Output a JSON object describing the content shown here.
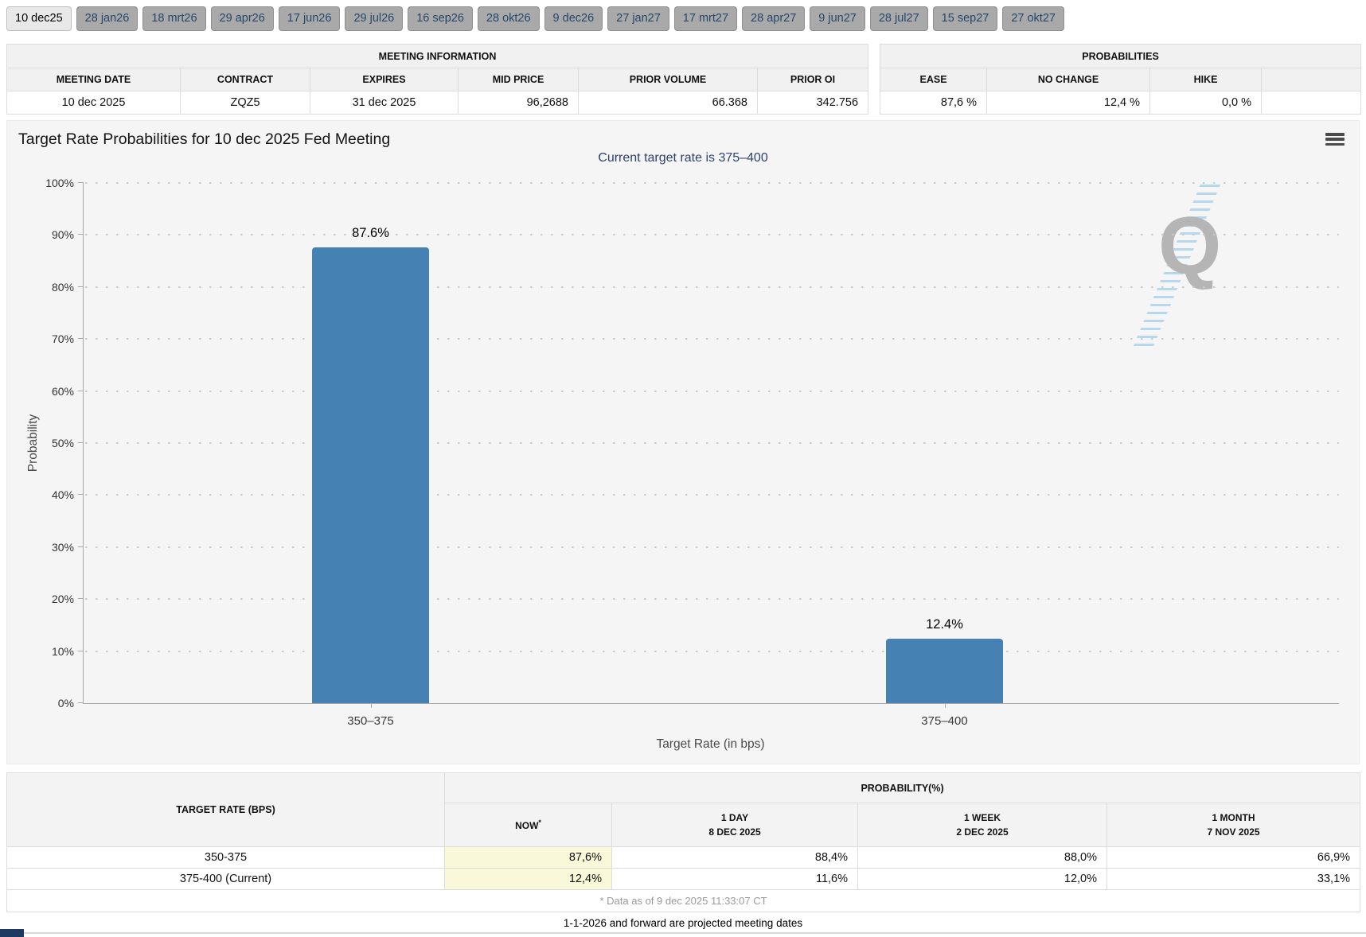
{
  "tabs": {
    "items": [
      {
        "label": "10 dec25",
        "active": true
      },
      {
        "label": "28 jan26",
        "active": false
      },
      {
        "label": "18 mrt26",
        "active": false
      },
      {
        "label": "29 apr26",
        "active": false
      },
      {
        "label": "17 jun26",
        "active": false
      },
      {
        "label": "29 jul26",
        "active": false
      },
      {
        "label": "16 sep26",
        "active": false
      },
      {
        "label": "28 okt26",
        "active": false
      },
      {
        "label": "9 dec26",
        "active": false
      },
      {
        "label": "27 jan27",
        "active": false
      },
      {
        "label": "17 mrt27",
        "active": false
      },
      {
        "label": "28 apr27",
        "active": false
      },
      {
        "label": "9 jun27",
        "active": false
      },
      {
        "label": "28 jul27",
        "active": false
      },
      {
        "label": "15 sep27",
        "active": false
      },
      {
        "label": "27 okt27",
        "active": false
      }
    ]
  },
  "meeting_info": {
    "title": "MEETING INFORMATION",
    "columns": [
      "MEETING DATE",
      "CONTRACT",
      "EXPIRES",
      "MID PRICE",
      "PRIOR VOLUME",
      "PRIOR OI"
    ],
    "values": [
      "10 dec 2025",
      "ZQZ5",
      "31 dec 2025",
      "96,2688",
      "66.368",
      "342.756"
    ]
  },
  "probabilities": {
    "title": "PROBABILITIES",
    "columns": [
      "EASE",
      "NO CHANGE",
      "HIKE"
    ],
    "values": [
      "87,6 %",
      "12,4 %",
      "0,0 %"
    ]
  },
  "chart_data": {
    "type": "bar",
    "title": "Target Rate Probabilities for 10 dec 2025 Fed Meeting",
    "subtitle": "Current target rate is 375–400",
    "categories": [
      "350–375",
      "375–400"
    ],
    "values": [
      87.6,
      12.4
    ],
    "labels": [
      "87.6%",
      "12.4%"
    ],
    "xlabel": "Target Rate (in bps)",
    "ylabel": "Probability",
    "ylim": [
      0,
      100
    ],
    "yticks": [
      "0%",
      "10%",
      "20%",
      "30%",
      "40%",
      "50%",
      "60%",
      "70%",
      "80%",
      "90%",
      "100%"
    ],
    "grid": true,
    "legend": "none",
    "bar_color": "#4681b4"
  },
  "icons": {
    "menu": "hamburger-menu-icon"
  },
  "watermark": {
    "letter": "Q"
  },
  "history_table": {
    "col1_header": "TARGET RATE (BPS)",
    "group_header": "PROBABILITY(%)",
    "columns": [
      {
        "line1": "NOW",
        "sup": "*"
      },
      {
        "line1": "1 DAY",
        "line2": "8 DEC 2025"
      },
      {
        "line1": "1 WEEK",
        "line2": "2 DEC 2025"
      },
      {
        "line1": "1 MONTH",
        "line2": "7 NOV 2025"
      }
    ],
    "rows": [
      {
        "rate": "350-375",
        "now": "87,6%",
        "day": "88,4%",
        "week": "88,0%",
        "month": "66,9%"
      },
      {
        "rate": "375-400 (Current)",
        "now": "12,4%",
        "day": "11,6%",
        "week": "12,0%",
        "month": "33,1%"
      }
    ],
    "footnote": "* Data as of 9 dec 2025 11:33:07 CT"
  },
  "footer": {
    "note": "1-1-2026 and forward are projected meeting dates"
  },
  "colors": {
    "bar": "#4681b4",
    "subtitle_text": "#2d4170",
    "now_highlight": "#f9f9d9",
    "tab_active_bg": "#e8e8e8",
    "tab_bg": "#a9a9a9"
  }
}
